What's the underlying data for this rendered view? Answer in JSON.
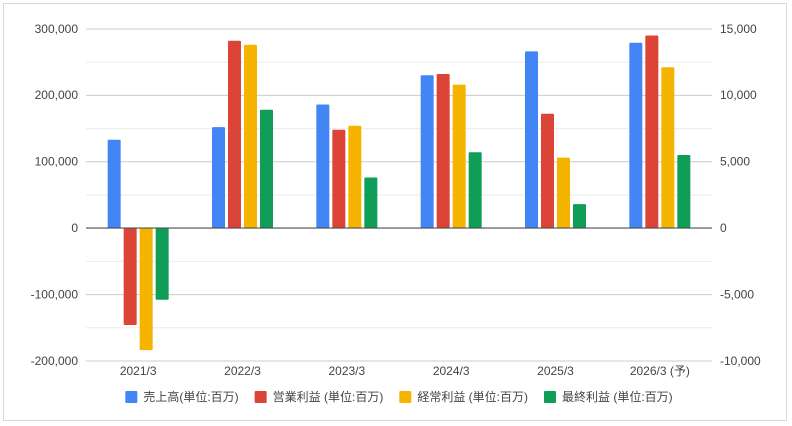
{
  "chart_data": {
    "type": "bar",
    "categories": [
      "2021/3",
      "2022/3",
      "2023/3",
      "2024/3",
      "2025/3",
      "2026/3 (予)"
    ],
    "series": [
      {
        "name": "売上高(単位:百万)",
        "axis": "left",
        "color": "#4285f4",
        "values": [
          133000,
          152000,
          186000,
          230000,
          266000,
          279000
        ]
      },
      {
        "name": "営業利益 (単位:百万)",
        "axis": "right",
        "color": "#db4437",
        "values": [
          -7300,
          14100,
          7400,
          11600,
          8600,
          14500
        ]
      },
      {
        "name": "経常利益 (単位:百万)",
        "axis": "right",
        "color": "#f4b400",
        "values": [
          -9200,
          13800,
          7700,
          10800,
          5300,
          12100
        ]
      },
      {
        "name": "最終利益 (単位:百万)",
        "axis": "right",
        "color": "#0f9d58",
        "values": [
          -5400,
          8900,
          3800,
          5700,
          1800,
          5500
        ]
      }
    ],
    "left_axis": {
      "ylim": [
        -200000,
        300000
      ],
      "ticks": [
        300000,
        200000,
        100000,
        0,
        -100000,
        -200000
      ],
      "tick_labels": [
        "300,000",
        "200,000",
        "100,000",
        "0",
        "-100,000",
        "-200,000"
      ]
    },
    "right_axis": {
      "ylim": [
        -10000,
        15000
      ],
      "ticks": [
        15000,
        10000,
        5000,
        0,
        -5000,
        -10000
      ],
      "tick_labels": [
        "15,000",
        "10,000",
        "5,000",
        "0",
        "-5,000",
        "-10,000"
      ]
    },
    "minor_gridlines": true,
    "legend_position": "bottom"
  }
}
